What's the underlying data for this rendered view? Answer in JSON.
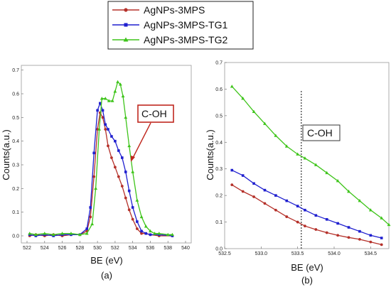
{
  "legend": [
    {
      "name": "AgNPs-3MPS",
      "color": "#b5312a",
      "marker": "circle"
    },
    {
      "name": "AgNPs-3MPS-TG1",
      "color": "#1f1fcf",
      "marker": "square"
    },
    {
      "name": "AgNPs-3MPS-TG2",
      "color": "#3ec41a",
      "marker": "triangle"
    }
  ],
  "chart_data": [
    {
      "type": "line",
      "panel": "(a)",
      "xlabel": "BE (eV)",
      "ylabel": "Counts(a.u.)",
      "xlim": [
        522,
        540
      ],
      "ylim": [
        -0.03,
        0.72
      ],
      "xticks": [
        "522",
        "524",
        "526",
        "528",
        "530",
        "532",
        "534",
        "536",
        "538",
        "540"
      ],
      "yticks": [
        "0.0",
        "0.1",
        "0.2",
        "0.3",
        "0.4",
        "0.5",
        "0.6",
        "0.7"
      ],
      "annotation": "C-OH",
      "series": [
        {
          "name": "AgNPs-3MPS",
          "color": "#b5312a",
          "marker": "circle",
          "x": [
            522.3,
            523,
            524,
            525,
            526,
            527,
            528,
            528.8,
            529.2,
            529.6,
            530,
            530.3,
            530.6,
            530.9,
            531.2,
            531.6,
            532,
            532.4,
            532.8,
            533.2,
            533.6,
            534,
            534.5,
            535,
            535.5,
            536,
            537,
            538.5
          ],
          "y": [
            0.0,
            0.005,
            0.0,
            0.005,
            0.0,
            0.005,
            0.005,
            0.02,
            0.08,
            0.25,
            0.45,
            0.52,
            0.5,
            0.45,
            0.38,
            0.33,
            0.29,
            0.25,
            0.21,
            0.16,
            0.11,
            0.07,
            0.03,
            0.01,
            0.01,
            0.005,
            0.0,
            0.0
          ]
        },
        {
          "name": "AgNPs-3MPS-TG1",
          "color": "#1f1fcf",
          "marker": "square",
          "x": [
            522.3,
            523,
            524,
            525,
            526,
            527,
            528,
            528.8,
            529.2,
            529.6,
            530,
            530.3,
            530.6,
            530.9,
            531.2,
            531.6,
            532,
            532.4,
            532.8,
            533.2,
            533.6,
            534,
            534.5,
            535,
            535.5,
            536,
            537,
            538.5
          ],
          "y": [
            0.005,
            0.0,
            0.005,
            0.0,
            0.005,
            0.005,
            0.005,
            0.03,
            0.12,
            0.35,
            0.53,
            0.56,
            0.53,
            0.47,
            0.45,
            0.42,
            0.4,
            0.36,
            0.33,
            0.27,
            0.19,
            0.12,
            0.06,
            0.02,
            0.01,
            0.005,
            0.005,
            0.0
          ]
        },
        {
          "name": "AgNPs-3MPS-TG2",
          "color": "#3ec41a",
          "marker": "triangle",
          "x": [
            522.3,
            523,
            524,
            525,
            526,
            527,
            528,
            528.8,
            529.4,
            529.8,
            530.2,
            530.5,
            530.9,
            531.3,
            531.7,
            532,
            532.3,
            532.6,
            532.9,
            533.2,
            533.6,
            534,
            534.5,
            535,
            535.5,
            536,
            536.5,
            537,
            538,
            538.5
          ],
          "y": [
            0.01,
            0.005,
            0.01,
            0.005,
            0.01,
            0.01,
            0.005,
            0.01,
            0.05,
            0.2,
            0.45,
            0.58,
            0.58,
            0.57,
            0.57,
            0.61,
            0.65,
            0.64,
            0.59,
            0.5,
            0.38,
            0.27,
            0.15,
            0.08,
            0.04,
            0.02,
            0.01,
            0.01,
            0.005,
            0.005
          ]
        }
      ]
    },
    {
      "type": "line",
      "panel": "(b)",
      "xlabel": "BE (eV)",
      "ylabel": "Counts(a.u.)",
      "xlim": [
        532.5,
        534.75
      ],
      "ylim": [
        0.0,
        0.7
      ],
      "xticks": [
        "532.5",
        "533.0",
        "533.5",
        "534.0",
        "534.5"
      ],
      "xtick_values": [
        532.5,
        533.0,
        533.5,
        534.0,
        534.5
      ],
      "yticks": [
        "0.0",
        "0.1",
        "0.2",
        "0.3",
        "0.4",
        "0.5",
        "0.6",
        "0.7"
      ],
      "vline_x": 533.55,
      "annotation": "C-OH",
      "series": [
        {
          "name": "AgNPs-3MPS",
          "color": "#b5312a",
          "marker": "circle",
          "x": [
            532.6,
            532.75,
            532.9,
            533.05,
            533.2,
            533.35,
            533.5,
            533.6,
            533.75,
            533.9,
            534.05,
            534.2,
            534.35,
            534.5,
            534.65
          ],
          "y": [
            0.24,
            0.215,
            0.195,
            0.17,
            0.145,
            0.12,
            0.1,
            0.085,
            0.072,
            0.06,
            0.05,
            0.042,
            0.035,
            0.025,
            0.015
          ]
        },
        {
          "name": "AgNPs-3MPS-TG1",
          "color": "#1f1fcf",
          "marker": "square",
          "x": [
            532.6,
            532.75,
            532.9,
            533.05,
            533.2,
            533.35,
            533.5,
            533.6,
            533.75,
            533.9,
            534.05,
            534.2,
            534.35,
            534.5,
            534.65
          ],
          "y": [
            0.295,
            0.275,
            0.245,
            0.22,
            0.2,
            0.18,
            0.16,
            0.145,
            0.125,
            0.11,
            0.095,
            0.08,
            0.065,
            0.05,
            0.04
          ]
        },
        {
          "name": "AgNPs-3MPS-TG2",
          "color": "#3ec41a",
          "marker": "triangle",
          "x": [
            532.6,
            532.75,
            532.9,
            533.05,
            533.2,
            533.35,
            533.5,
            533.6,
            533.75,
            533.9,
            534.05,
            534.2,
            534.35,
            534.5,
            534.65,
            534.75
          ],
          "y": [
            0.61,
            0.565,
            0.515,
            0.47,
            0.425,
            0.385,
            0.355,
            0.34,
            0.315,
            0.285,
            0.255,
            0.215,
            0.18,
            0.145,
            0.115,
            0.09
          ]
        }
      ]
    }
  ]
}
